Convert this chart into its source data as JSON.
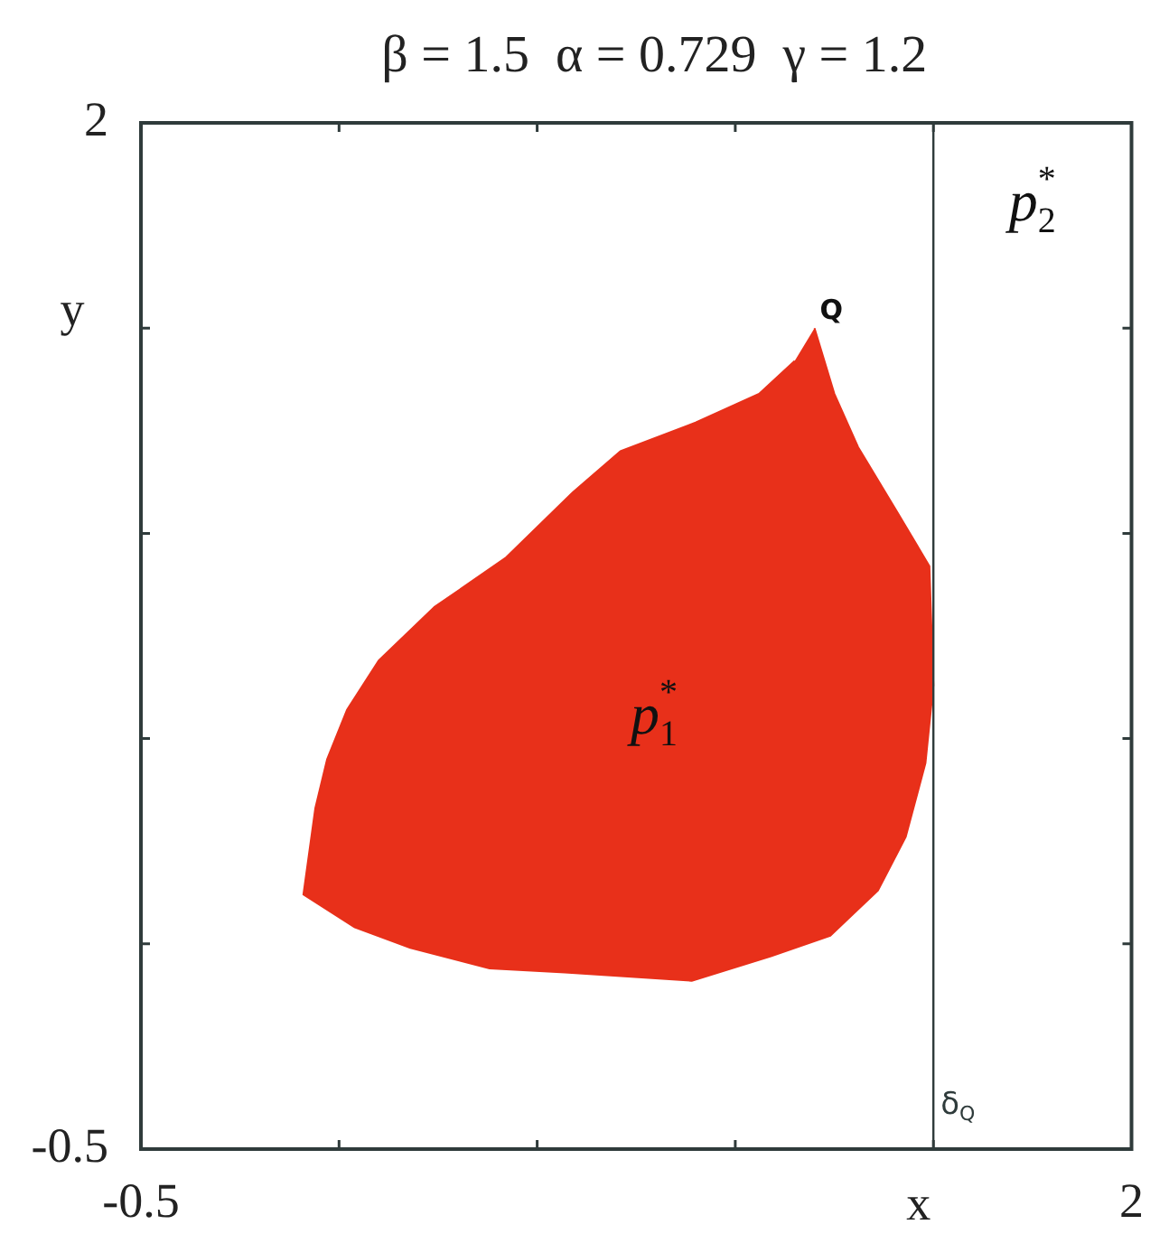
{
  "chart_data": {
    "type": "area",
    "title": "β = 1.5  α = 0.729  γ = 1.2",
    "xlabel": "x",
    "ylabel": "y",
    "x": [
      1.2,
      1.25,
      1.31,
      1.41,
      1.49,
      1.5,
      1.48,
      1.43,
      1.36,
      1.24,
      1.09,
      0.89,
      0.57,
      0.38,
      0.18,
      0.04,
      -0.09,
      -0.06,
      -0.03,
      0.02,
      0.1,
      0.24,
      0.42,
      0.59,
      0.71,
      0.9,
      1.06,
      1.15
    ],
    "values": [
      1.5,
      1.34,
      1.21,
      1.05,
      0.92,
      0.63,
      0.44,
      0.26,
      0.13,
      0.02,
      -0.03,
      -0.09,
      -0.07,
      -0.06,
      -0.01,
      0.04,
      0.12,
      0.33,
      0.45,
      0.57,
      0.69,
      0.82,
      0.94,
      1.1,
      1.2,
      1.27,
      1.34,
      1.42
    ],
    "color": "#e8301a",
    "xlim": [
      -0.5,
      2
    ],
    "ylim": [
      -0.5,
      2
    ],
    "xticks": [
      -0.5,
      {
        "value": 0,
        "label": null
      },
      {
        "value": 0.5,
        "label": null
      },
      {
        "value": 1,
        "label": null
      },
      {
        "value": 1.5,
        "label": null
      },
      2
    ],
    "yticks": [
      -0.5,
      {
        "value": 0,
        "label": null
      },
      {
        "value": 0.5,
        "label": null
      },
      {
        "value": 1,
        "label": null
      },
      {
        "value": 1.5,
        "label": null
      },
      2
    ],
    "ref_lines": [
      {
        "axis": "x",
        "value": 1.5,
        "label": "δ$_{Q}$",
        "color": "#2f3b3b"
      }
    ],
    "annotations": [
      {
        "text": "Q",
        "x": 1.2,
        "y": 1.5
      },
      "p$_{1}$$^{*}$",
      "p$_{2}$$^{*}$"
    ]
  }
}
